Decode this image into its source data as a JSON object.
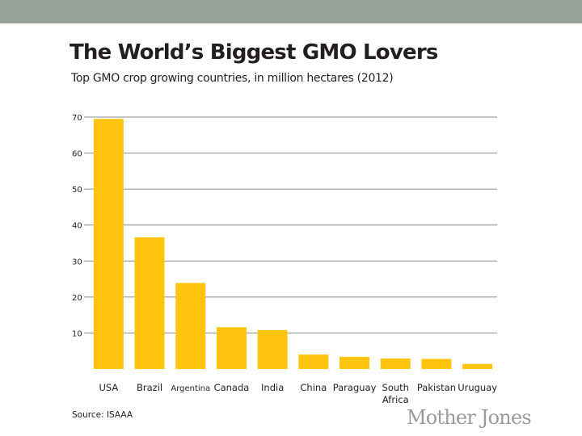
{
  "chart_data": {
    "type": "bar",
    "title": "The World’s Biggest GMO Lovers",
    "subtitle": "Top GMO crop growing countries, in million hectares (2012)",
    "categories": [
      "USA",
      "Brazil",
      "Argentina",
      "Canada",
      "India",
      "China",
      "Paraguay",
      "South Africa",
      "Pakistan",
      "Uruguay"
    ],
    "values": [
      69.5,
      36.6,
      23.9,
      11.6,
      10.8,
      4.0,
      3.4,
      2.9,
      2.8,
      1.4
    ],
    "yticks": [
      10,
      20,
      30,
      40,
      50,
      60,
      70
    ],
    "ylim": [
      0,
      70
    ],
    "xlabel": "",
    "ylabel": "",
    "grid": true,
    "legend": "none",
    "bar_color": "#fec40e",
    "grid_color": "#8c8c8c"
  },
  "source": "Source: ISAAA",
  "brand": "Mother Jones",
  "colors": {
    "top_bar": "#95a39a",
    "text": "#231f20"
  }
}
